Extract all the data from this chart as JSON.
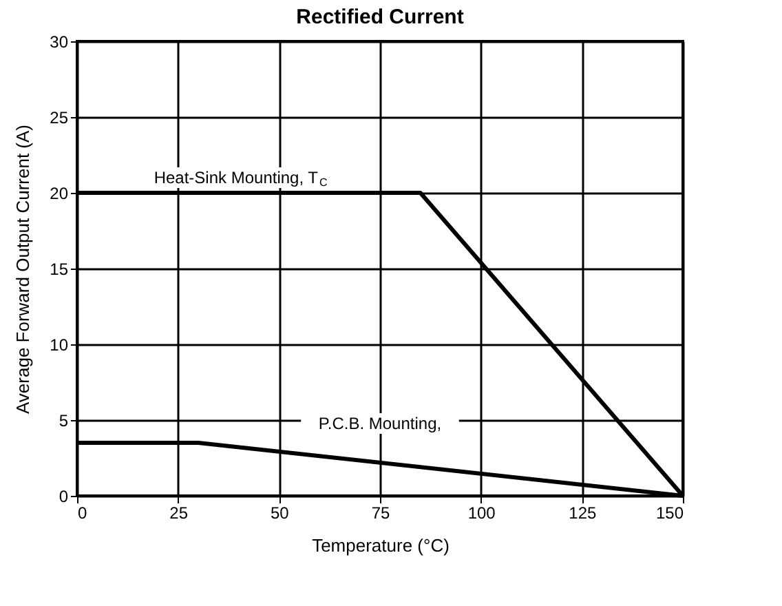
{
  "chart_data": {
    "type": "line",
    "title": "Rectified Current",
    "xlabel": "Temperature (°C)",
    "ylabel": "Average Forward Output Current (A)",
    "series": [
      {
        "name": "Heat-Sink Mounting, T$_{C}$",
        "color": "#000000",
        "x": [
          0,
          85,
          150
        ],
        "values": [
          20,
          20,
          0
        ]
      },
      {
        "name": "P.C.B. Mounting,",
        "color": "#000000",
        "x": [
          0,
          30,
          150
        ],
        "values": [
          3.5,
          3.5,
          0
        ]
      }
    ],
    "xlim": [
      0,
      150
    ],
    "xticks": [
      0,
      25,
      50,
      75,
      100,
      125,
      150
    ],
    "ylim": [
      0,
      30
    ],
    "yticks": [
      0,
      5,
      10,
      15,
      20,
      25,
      30
    ],
    "grid": true,
    "marker": "none",
    "line_style": "solid"
  }
}
